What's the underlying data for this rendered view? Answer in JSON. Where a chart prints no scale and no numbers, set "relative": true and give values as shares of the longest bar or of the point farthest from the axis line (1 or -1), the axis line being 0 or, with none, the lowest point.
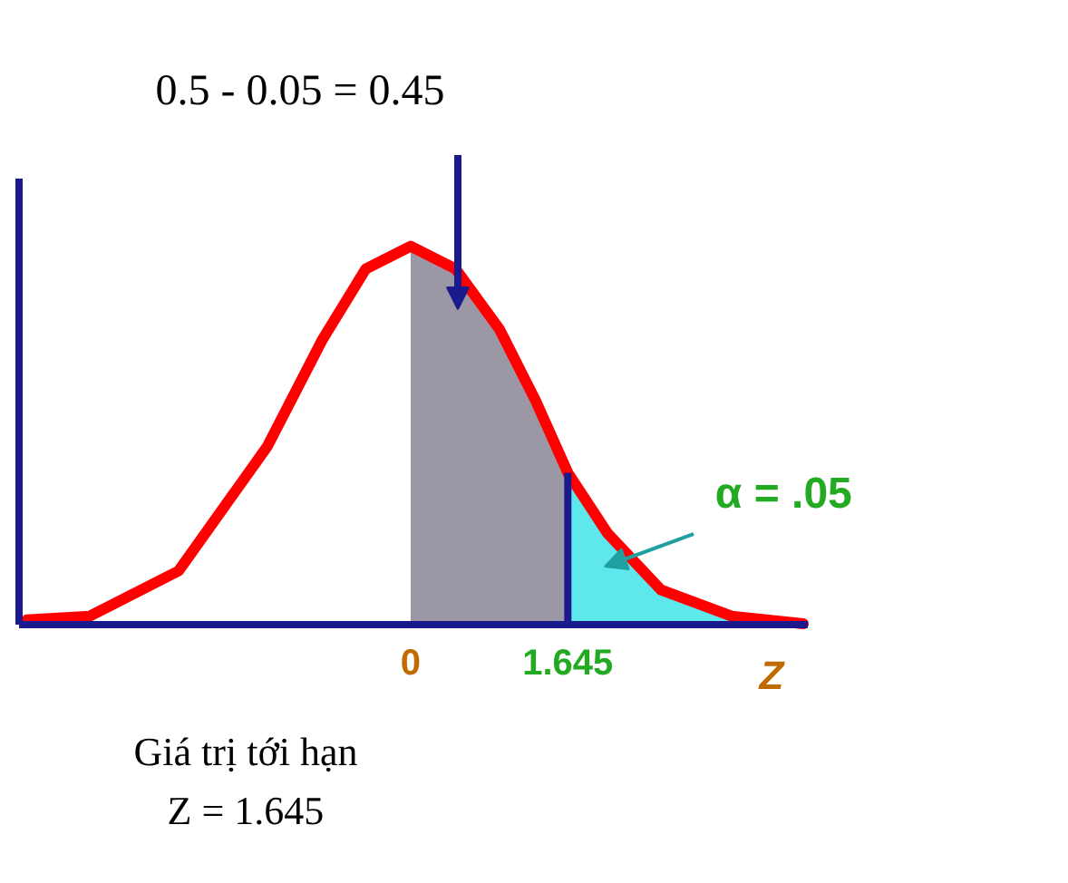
{
  "chart_data": {
    "type": "line",
    "relative": true,
    "xlabel": "Z",
    "xlim": [
      -4.1,
      4.15
    ],
    "xticks": [
      0,
      1.645
    ],
    "tick_labels": "x",
    "series": [
      {
        "type": "area",
        "color": "#9c97a4",
        "x": [
          0,
          0.47,
          0.93,
          1.31,
          1.645
        ],
        "values": [
          1,
          0.94,
          0.78,
          0.59,
          0.4
        ]
      },
      {
        "type": "area",
        "color": "#5ee8ec",
        "x": [
          1.645,
          2.06,
          2.62,
          3.36,
          4.11
        ],
        "values": [
          0.4,
          0.24,
          0.09,
          0.02,
          0
        ]
      },
      {
        "color": "#ff0000",
        "x": [
          -4.02,
          -3.36,
          -2.43,
          -1.5,
          -0.93,
          -0.47,
          0,
          0.47,
          0.93,
          1.31,
          1.645,
          2.06,
          2.62,
          3.36,
          4.11
        ],
        "values": [
          0.01,
          0.02,
          0.14,
          0.47,
          0.75,
          0.94,
          1,
          0.94,
          0.78,
          0.59,
          0.4,
          0.24,
          0.09,
          0.02,
          0
        ]
      }
    ],
    "ref_lines": [
      {
        "axis": "x",
        "value": 1.645,
        "color": "#1a1a8c"
      }
    ],
    "annotations": [
      "0.5 - 0.05 = 0.45",
      "α  = .05",
      "Giá trị tới hạn\nZ = 1.645"
    ]
  }
}
